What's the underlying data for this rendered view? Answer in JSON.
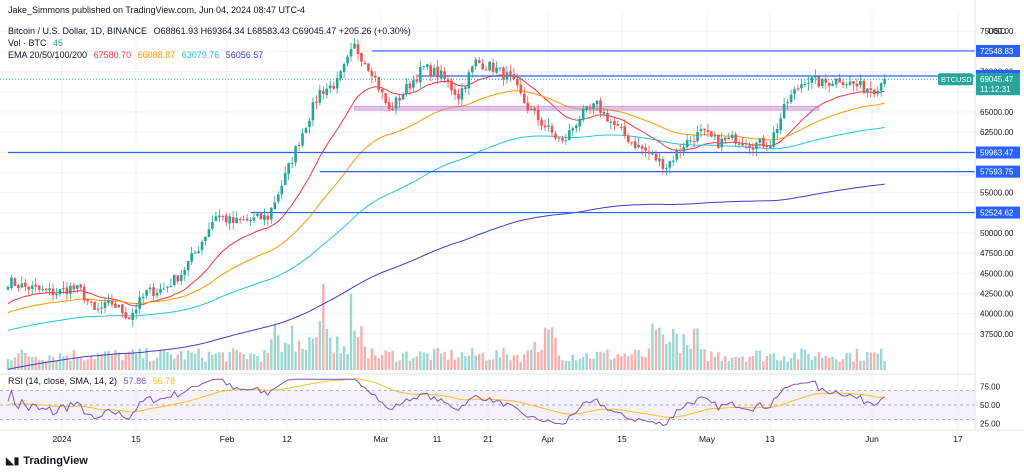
{
  "credit": "Jake_Simmons published on TradingView.com, Jun 04, 2024 08:47 UTC-4",
  "legend": {
    "symbol": "Bitcoin / U.S. Dollar, 1D, BINANCE",
    "ohlc": "O68861.93 H69364.34 L68583.43 C69045.47 +205.26 (+0.30%)",
    "vol_label": "Vol · BTC",
    "vol_value": "45",
    "ema_label": "EMA 20/50/100/200",
    "ema_values": [
      {
        "value": "67580.70",
        "color": "#f23645"
      },
      {
        "value": "66088.87",
        "color": "#ff9800"
      },
      {
        "value": "63079.76",
        "color": "#26c6da"
      },
      {
        "value": "56056.57",
        "color": "#3f3fc7"
      }
    ],
    "rsi_label": "RSI (14, close, SMA, 14, 2)",
    "rsi_value": "57.86",
    "rsi_ma_value": "56.78"
  },
  "brand": "TradingView",
  "chart_data": {
    "type": "candlestick",
    "currency_label": "USD",
    "ylim": [
      35000,
      77500
    ],
    "y_ticks": [
      "75000.00",
      "72500.00",
      "70000.00",
      "67500.00",
      "65000.00",
      "62500.00",
      "60000.00",
      "57500.00",
      "55000.00",
      "52500.00",
      "50000.00",
      "47500.00",
      "45000.00",
      "42500.00",
      "40000.00",
      "37500.00"
    ],
    "x_labels": [
      "2024",
      "15",
      "Feb",
      "12",
      "Mar",
      "11",
      "21",
      "Apr",
      "15",
      "May",
      "13",
      "Jun",
      "17"
    ],
    "price_line": {
      "label": "BTCUSD",
      "value": "69045.47",
      "countdown": "11:12:31",
      "color": "#26a69a"
    },
    "levels": [
      {
        "value": 72548.83,
        "label": "72548.83"
      },
      {
        "value": 69446.69,
        "label": "69446.69"
      },
      {
        "value": 59963.47,
        "label": "59963.47"
      },
      {
        "value": 57593.75,
        "label": "57593.75"
      },
      {
        "value": 52524.62,
        "label": "52524.62"
      }
    ],
    "zone": [
      65200,
      65700
    ],
    "anchors": [
      [
        0,
        44000
      ],
      [
        5,
        43300
      ],
      [
        10,
        42800
      ],
      [
        14,
        42600
      ],
      [
        18,
        43200
      ],
      [
        21,
        42800
      ],
      [
        25,
        40200
      ],
      [
        30,
        41300
      ],
      [
        35,
        39600
      ],
      [
        40,
        42600
      ],
      [
        45,
        43100
      ],
      [
        50,
        45000
      ],
      [
        55,
        48200
      ],
      [
        60,
        52300
      ],
      [
        65,
        51300
      ],
      [
        70,
        51600
      ],
      [
        75,
        52000
      ],
      [
        80,
        57000
      ],
      [
        85,
        62500
      ],
      [
        90,
        67500
      ],
      [
        95,
        68600
      ],
      [
        100,
        73100
      ],
      [
        105,
        70100
      ],
      [
        110,
        65100
      ],
      [
        115,
        67900
      ],
      [
        120,
        70500
      ],
      [
        125,
        69500
      ],
      [
        130,
        67000
      ],
      [
        135,
        71200
      ],
      [
        140,
        70500
      ],
      [
        145,
        69100
      ],
      [
        150,
        65500
      ],
      [
        155,
        63200
      ],
      [
        160,
        61100
      ],
      [
        165,
        64400
      ],
      [
        170,
        65800
      ],
      [
        175,
        63300
      ],
      [
        180,
        61300
      ],
      [
        185,
        59800
      ],
      [
        190,
        58300
      ],
      [
        195,
        61000
      ],
      [
        200,
        62400
      ],
      [
        205,
        61200
      ],
      [
        210,
        61700
      ],
      [
        215,
        61000
      ],
      [
        220,
        61200
      ],
      [
        225,
        66300
      ],
      [
        230,
        69100
      ],
      [
        235,
        68500
      ],
      [
        240,
        69100
      ],
      [
        245,
        68200
      ],
      [
        250,
        67900
      ],
      [
        253,
        69045
      ]
    ],
    "ema": [
      {
        "period": 20,
        "color": "#f23645",
        "end": 67580.7
      },
      {
        "period": 50,
        "color": "#ff9800",
        "end": 66088.87
      },
      {
        "period": 100,
        "color": "#26c6da",
        "end": 63079.76
      },
      {
        "period": 200,
        "color": "#3f3fc7",
        "end": 56056.57
      }
    ],
    "rsi_levels": [
      "75.00",
      "50.00",
      "25.00"
    ],
    "colors": {
      "up": "#26a69a",
      "down": "#ef5350",
      "level": "#2962ff",
      "zone": "#ce93d8",
      "rsi": "#7e57c2",
      "rsi_ma": "#fbc02d"
    }
  }
}
